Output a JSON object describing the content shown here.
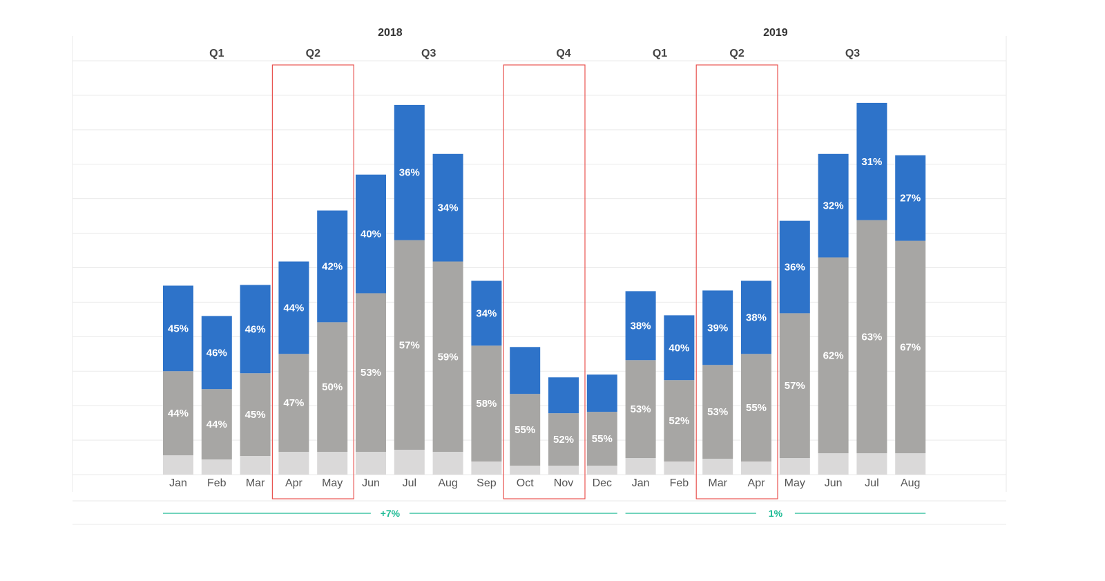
{
  "colors": {
    "series_top": "#2e73c9",
    "series_middle": "#a7a6a4",
    "series_bottom": "#dad9d9",
    "highlight_box": "#e85450",
    "change_line": "#1dbb95",
    "grid": "#e9e9e9"
  },
  "chart_data": {
    "type": "bar",
    "stacked": true,
    "grid": true,
    "legend": "none",
    "years": [
      {
        "label": "2018",
        "first_index": 0,
        "last_index": 11
      },
      {
        "label": "2019",
        "first_index": 12,
        "last_index": 19
      }
    ],
    "quarters": [
      {
        "label": "Q1",
        "first_index": 0,
        "last_index": 2
      },
      {
        "label": "Q2",
        "first_index": 3,
        "last_index": 4
      },
      {
        "label": "Q3",
        "first_index": 5,
        "last_index": 8
      },
      {
        "label": "Q4",
        "first_index": 9,
        "last_index": 11
      },
      {
        "label": "Q1",
        "first_index": 12,
        "last_index": 13
      },
      {
        "label": "Q2",
        "first_index": 14,
        "last_index": 15
      },
      {
        "label": "Q3",
        "first_index": 16,
        "last_index": 19
      }
    ],
    "categories": [
      "Jan",
      "Feb",
      "Mar",
      "Apr",
      "May",
      "Jun",
      "Jul",
      "Aug",
      "Sep",
      "Oct",
      "Nov",
      "Dec",
      "Jan",
      "Feb",
      "Mar",
      "Apr",
      "May",
      "Jun",
      "Jul",
      "Aug"
    ],
    "ylim": [
      0,
      600
    ],
    "series": [
      {
        "role": "bottom",
        "values": [
          28,
          22,
          27,
          33,
          33,
          33,
          36,
          33,
          19,
          13,
          13,
          13,
          24,
          19,
          23,
          19,
          24,
          31,
          31,
          31
        ]
      },
      {
        "role": "middle",
        "values": [
          122,
          102,
          120,
          142,
          188,
          230,
          304,
          276,
          168,
          104,
          76,
          78,
          142,
          118,
          136,
          156,
          210,
          284,
          338,
          308
        ]
      },
      {
        "role": "top",
        "values": [
          124,
          106,
          128,
          134,
          162,
          172,
          196,
          156,
          94,
          68,
          52,
          54,
          100,
          94,
          108,
          106,
          134,
          150,
          170,
          124
        ]
      }
    ],
    "segment_labels": {
      "middle": [
        "44%",
        "44%",
        "45%",
        "47%",
        "50%",
        "53%",
        "57%",
        "59%",
        "58%",
        "55%",
        "52%",
        "55%",
        "53%",
        "52%",
        "53%",
        "55%",
        "57%",
        "62%",
        "63%",
        "67%"
      ],
      "top": [
        "45%",
        "46%",
        "46%",
        "44%",
        "42%",
        "40%",
        "36%",
        "34%",
        "34%",
        "",
        "",
        "",
        "38%",
        "40%",
        "39%",
        "38%",
        "36%",
        "32%",
        "31%",
        "27%"
      ]
    },
    "highlight_ranges": [
      [
        3,
        4
      ],
      [
        9,
        10
      ],
      [
        14,
        15
      ]
    ],
    "changes": [
      {
        "label": "+7%",
        "first_index": 0,
        "last_index": 11
      },
      {
        "label": "1%",
        "first_index": 12,
        "last_index": 19
      }
    ]
  }
}
